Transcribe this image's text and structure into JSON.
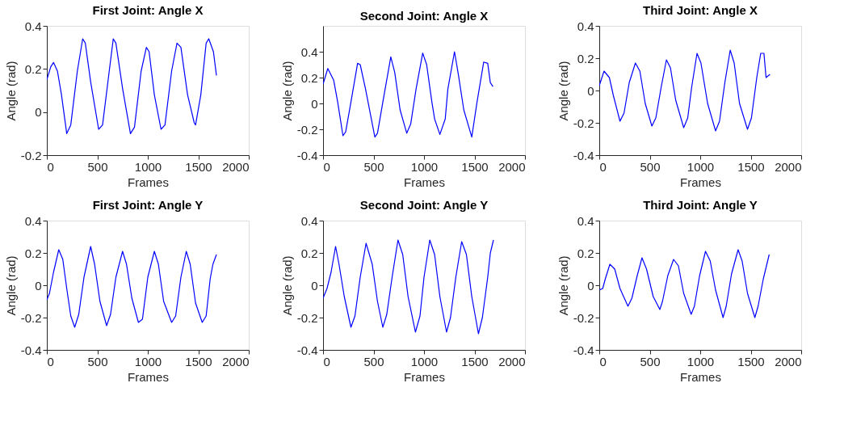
{
  "chart_data": [
    {
      "type": "line",
      "title": "First Joint: Angle X",
      "xlabel": "Frames",
      "ylabel": "Angle (rad)",
      "xlim": [
        0,
        2000
      ],
      "xticks": [
        0,
        500,
        1000,
        1500,
        2000
      ],
      "ylim": [
        -0.2,
        0.4
      ],
      "yticks": [
        -0.2,
        0,
        0.2,
        0.4
      ],
      "grid": false,
      "x": [
        0,
        39,
        66,
        105,
        145,
        197,
        237,
        302,
        355,
        381,
        434,
        513,
        552,
        618,
        658,
        684,
        750,
        828,
        868,
        934,
        986,
        1013,
        1065,
        1131,
        1170,
        1236,
        1289,
        1328,
        1394,
        1460,
        1473,
        1525,
        1578,
        1604,
        1650,
        1680
      ],
      "series": [
        {
          "color": "#0000ff",
          "values": [
            0.15,
            0.21,
            0.23,
            0.19,
            0.08,
            -0.1,
            -0.06,
            0.19,
            0.34,
            0.32,
            0.14,
            -0.08,
            -0.06,
            0.19,
            0.34,
            0.32,
            0.11,
            -0.1,
            -0.07,
            0.19,
            0.3,
            0.28,
            0.08,
            -0.08,
            -0.06,
            0.19,
            0.32,
            0.3,
            0.08,
            -0.05,
            -0.06,
            0.08,
            0.32,
            0.34,
            0.28,
            0.17
          ]
        }
      ]
    },
    {
      "type": "line",
      "title": "Second Joint: Angle X",
      "xlabel": "Frames",
      "ylabel": "Angle (rad)",
      "xlim": [
        0,
        2000
      ],
      "xticks": [
        0,
        500,
        1000,
        1500,
        2000
      ],
      "ylim": [
        -0.4,
        0.6
      ],
      "yticks": [
        -0.4,
        -0.2,
        0,
        0.2,
        0.4
      ],
      "grid": false,
      "x": [
        0,
        47,
        105,
        145,
        197,
        224,
        276,
        342,
        368,
        421,
        513,
        539,
        592,
        671,
        710,
        763,
        829,
        868,
        921,
        987,
        1026,
        1078,
        1105,
        1157,
        1210,
        1236,
        1302,
        1341,
        1394,
        1473,
        1525,
        1591,
        1631,
        1657,
        1683
      ],
      "series": [
        {
          "color": "#0000ff",
          "values": [
            0.15,
            0.27,
            0.18,
            0.01,
            -0.25,
            -0.22,
            0.01,
            0.31,
            0.3,
            0.11,
            -0.26,
            -0.23,
            0.01,
            0.36,
            0.24,
            -0.05,
            -0.23,
            -0.16,
            0.11,
            0.39,
            0.3,
            0.01,
            -0.12,
            -0.24,
            -0.12,
            0.11,
            0.4,
            0.22,
            -0.05,
            -0.26,
            0.01,
            0.32,
            0.31,
            0.16,
            0.13
          ]
        }
      ]
    },
    {
      "type": "line",
      "title": "Third Joint: Angle X",
      "xlabel": "Frames",
      "ylabel": "Angle (rad)",
      "xlim": [
        0,
        2000
      ],
      "xticks": [
        0,
        500,
        1000,
        1500,
        2000
      ],
      "ylim": [
        -0.4,
        0.4
      ],
      "yticks": [
        -0.4,
        -0.2,
        0,
        0.2,
        0.4
      ],
      "grid": false,
      "x": [
        0,
        47,
        100,
        139,
        205,
        245,
        297,
        358,
        402,
        455,
        521,
        560,
        613,
        665,
        705,
        757,
        836,
        876,
        915,
        968,
        1007,
        1073,
        1152,
        1191,
        1244,
        1297,
        1336,
        1389,
        1468,
        1507,
        1560,
        1599,
        1631,
        1652,
        1691
      ],
      "series": [
        {
          "color": "#0000ff",
          "values": [
            0.03,
            0.12,
            0.08,
            -0.03,
            -0.19,
            -0.14,
            0.05,
            0.17,
            0.12,
            -0.08,
            -0.22,
            -0.17,
            0.02,
            0.19,
            0.14,
            -0.06,
            -0.23,
            -0.17,
            0.02,
            0.23,
            0.17,
            -0.08,
            -0.25,
            -0.19,
            0.05,
            0.25,
            0.17,
            -0.08,
            -0.24,
            -0.17,
            0.08,
            0.23,
            0.23,
            0.08,
            0.1
          ]
        }
      ]
    },
    {
      "type": "line",
      "title": "First Joint: Angle Y",
      "xlabel": "Frames",
      "ylabel": "Angle (rad)",
      "xlim": [
        0,
        2000
      ],
      "xticks": [
        0,
        500,
        1000,
        1500,
        2000
      ],
      "ylim": [
        -0.4,
        0.4
      ],
      "yticks": [
        -0.4,
        -0.2,
        0,
        0.2,
        0.4
      ],
      "grid": false,
      "x": [
        0,
        26,
        66,
        118,
        158,
        197,
        237,
        276,
        316,
        368,
        434,
        473,
        526,
        592,
        631,
        684,
        750,
        789,
        842,
        907,
        947,
        1000,
        1065,
        1105,
        1157,
        1236,
        1276,
        1328,
        1381,
        1420,
        1473,
        1539,
        1578,
        1618,
        1645,
        1680
      ],
      "series": [
        {
          "color": "#0000ff",
          "values": [
            -0.09,
            -0.05,
            0.08,
            0.22,
            0.16,
            -0.02,
            -0.19,
            -0.26,
            -0.18,
            0.05,
            0.24,
            0.13,
            -0.1,
            -0.25,
            -0.18,
            0.05,
            0.21,
            0.13,
            -0.08,
            -0.23,
            -0.21,
            0.05,
            0.21,
            0.13,
            -0.1,
            -0.23,
            -0.19,
            0.05,
            0.21,
            0.13,
            -0.11,
            -0.23,
            -0.19,
            0.04,
            0.13,
            0.19
          ]
        }
      ]
    },
    {
      "type": "line",
      "title": "Second Joint: Angle Y",
      "xlabel": "Frames",
      "ylabel": "Angle (rad)",
      "xlim": [
        0,
        2000
      ],
      "xticks": [
        0,
        500,
        1000,
        1500,
        2000
      ],
      "ylim": [
        -0.4,
        0.4
      ],
      "yticks": [
        -0.4,
        -0.2,
        0,
        0.2,
        0.4
      ],
      "grid": false,
      "x": [
        0,
        39,
        79,
        124,
        158,
        210,
        276,
        316,
        368,
        426,
        487,
        539,
        592,
        631,
        684,
        742,
        789,
        842,
        915,
        960,
        1000,
        1057,
        1105,
        1157,
        1223,
        1262,
        1315,
        1373,
        1420,
        1473,
        1539,
        1578,
        1631,
        1657,
        1688
      ],
      "series": [
        {
          "color": "#0000ff",
          "values": [
            -0.08,
            -0.02,
            0.08,
            0.24,
            0.13,
            -0.07,
            -0.26,
            -0.19,
            0.05,
            0.26,
            0.13,
            -0.1,
            -0.26,
            -0.18,
            0.05,
            0.28,
            0.19,
            -0.07,
            -0.29,
            -0.19,
            0.05,
            0.28,
            0.19,
            -0.07,
            -0.29,
            -0.2,
            0.05,
            0.27,
            0.19,
            -0.07,
            -0.3,
            -0.2,
            0.05,
            0.2,
            0.28
          ]
        }
      ]
    },
    {
      "type": "line",
      "title": "Third Joint: Angle Y",
      "xlabel": "Frames",
      "ylabel": "Angle (rad)",
      "xlim": [
        0,
        2000
      ],
      "xticks": [
        0,
        500,
        1000,
        1500,
        2000
      ],
      "ylim": [
        -0.4,
        0.4
      ],
      "yticks": [
        -0.4,
        -0.2,
        0,
        0.2,
        0.4
      ],
      "grid": false,
      "x": [
        0,
        34,
        60,
        105,
        153,
        205,
        284,
        323,
        376,
        423,
        468,
        534,
        600,
        626,
        679,
        736,
        784,
        836,
        910,
        942,
        994,
        1052,
        1099,
        1152,
        1226,
        1257,
        1310,
        1375,
        1415,
        1468,
        1541,
        1573,
        1625,
        1683
      ],
      "series": [
        {
          "color": "#0000ff",
          "values": [
            -0.03,
            -0.02,
            0.04,
            0.13,
            0.1,
            -0.02,
            -0.13,
            -0.08,
            0.06,
            0.17,
            0.1,
            -0.07,
            -0.15,
            -0.1,
            0.06,
            0.16,
            0.12,
            -0.05,
            -0.18,
            -0.13,
            0.06,
            0.21,
            0.15,
            -0.03,
            -0.2,
            -0.13,
            0.07,
            0.22,
            0.15,
            -0.05,
            -0.2,
            -0.13,
            0.04,
            0.19
          ]
        }
      ]
    }
  ]
}
